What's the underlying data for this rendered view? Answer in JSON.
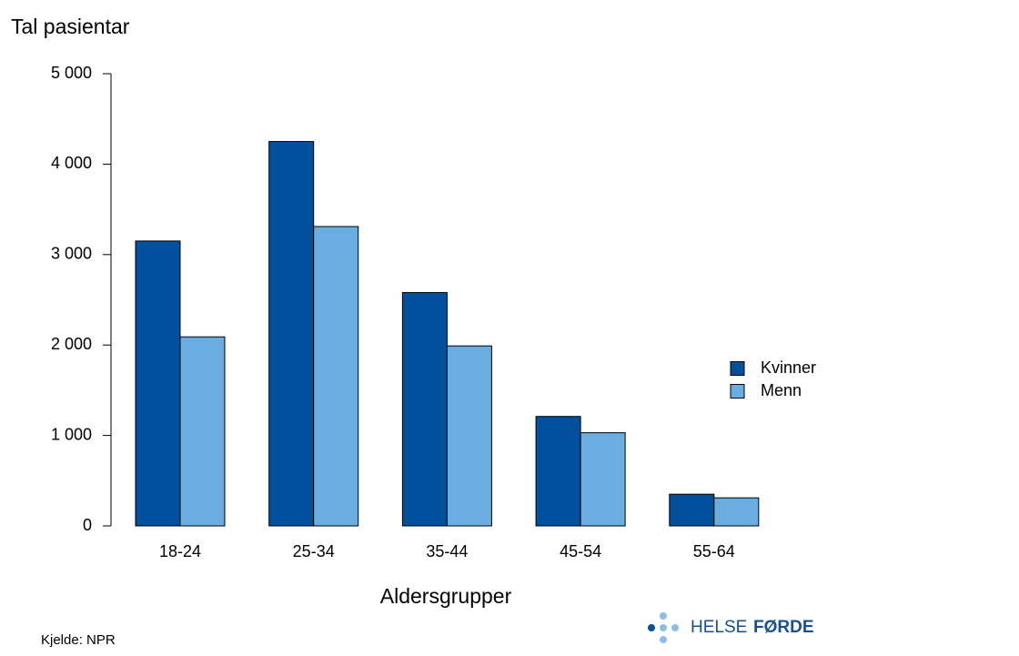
{
  "chart_data": {
    "type": "bar",
    "y_label": "Tal pasientar",
    "x_label": "Aldersgrupper",
    "source": "Kjelde: NPR",
    "brand": [
      "HELSE",
      "FØRDE"
    ],
    "categories": [
      "18-24",
      "25-34",
      "35-44",
      "45-54",
      "55-64"
    ],
    "series": [
      {
        "name": "Kvinner",
        "color": "#00509e",
        "values": [
          3150,
          4250,
          2580,
          1210,
          350
        ]
      },
      {
        "name": "Menn",
        "color": "#6aade0",
        "values": [
          2090,
          3310,
          1990,
          1030,
          310
        ]
      }
    ],
    "ylim": [
      0,
      5000
    ],
    "yticks": [
      0,
      {
        "value": 1000,
        "label": "1 000"
      },
      {
        "value": 2000,
        "label": "2 000"
      },
      {
        "value": 3000,
        "label": "3 000"
      },
      {
        "value": 4000,
        "label": "4 000"
      },
      {
        "value": 5000,
        "label": "5 000"
      }
    ],
    "grid": false,
    "legend": "right"
  }
}
